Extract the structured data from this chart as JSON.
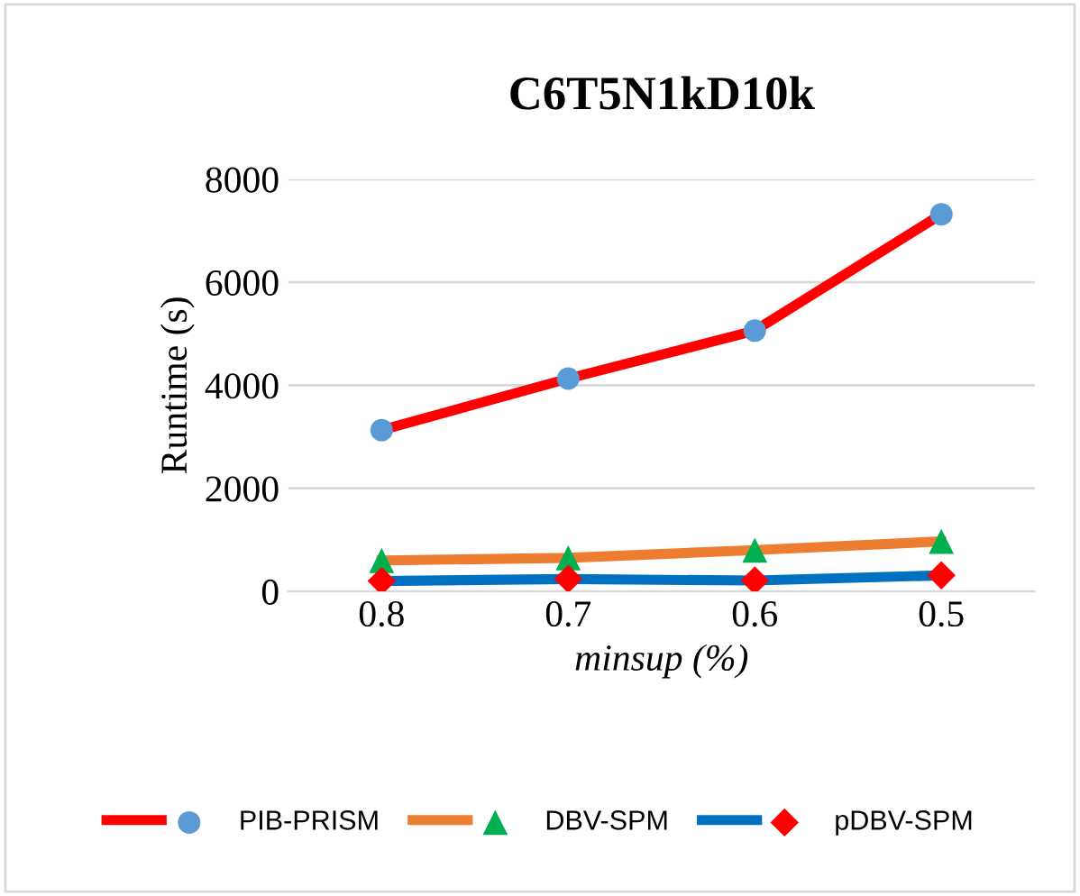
{
  "chart_data": {
    "type": "line",
    "title": "C6T5N1kD10k",
    "xlabel": "minsup (%)",
    "ylabel": "Runtime (s)",
    "categories": [
      "0.8",
      "0.7",
      "0.6",
      "0.5"
    ],
    "ylim": [
      0,
      8000
    ],
    "yticks": [
      0,
      2000,
      4000,
      6000,
      8000
    ],
    "grid": "y",
    "legend": "bottom",
    "series": [
      {
        "name": "PIB-PRISM",
        "color": "#ff0000",
        "colors": [
          "#5b9bd5",
          "#5b9bd5",
          "#5b9bd5",
          "#5b9bd5"
        ],
        "marker": "circle",
        "values": [
          3130,
          4130,
          5060,
          7320
        ]
      },
      {
        "name": "DBV-SPM",
        "color": "#ed7d31",
        "colors": [
          "#00b050",
          "#00b050",
          "#00b050",
          "#00b050"
        ],
        "marker": "triangle",
        "values": [
          600,
          650,
          800,
          970
        ]
      },
      {
        "name": "pDBV-SPM",
        "color": "#0070c0",
        "colors": [
          "#ff0000",
          "#ff0000",
          "#ff0000",
          "#ff0000"
        ],
        "marker": "diamond",
        "values": [
          200,
          240,
          210,
          310
        ]
      }
    ]
  }
}
